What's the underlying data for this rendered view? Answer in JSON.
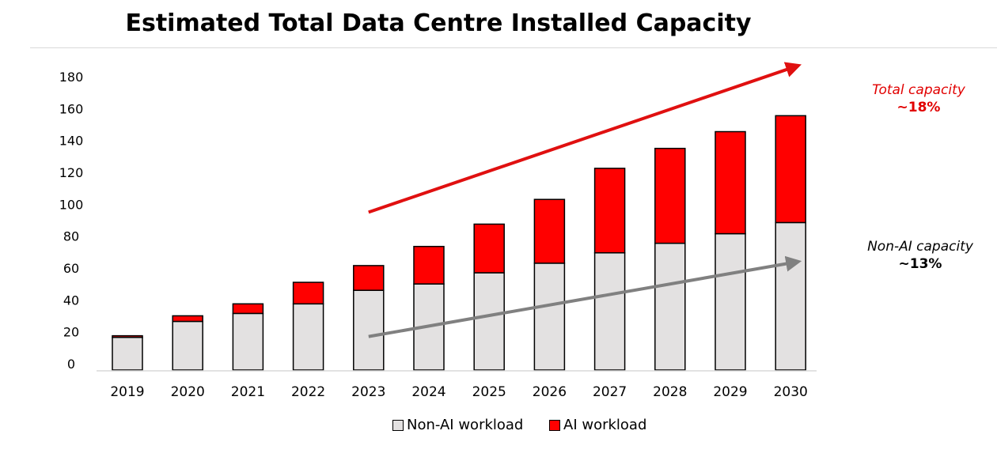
{
  "chart_data": {
    "type": "bar",
    "stacked": true,
    "title": "Estimated Total Data Centre Installed Capacity",
    "xlabel": "",
    "ylabel": "",
    "ylim": [
      0,
      180
    ],
    "yticks": [
      0,
      20,
      40,
      60,
      80,
      100,
      120,
      140,
      160,
      180
    ],
    "categories": [
      "2019",
      "2020",
      "2021",
      "2022",
      "2023",
      "2024",
      "2025",
      "2026",
      "2027",
      "2028",
      "2029",
      "2030"
    ],
    "series": [
      {
        "name": "Non-AI workload",
        "color": "#e3e1e1",
        "values": [
          20.5,
          30.5,
          35.5,
          41.5,
          50,
          54,
          61,
          67,
          73.5,
          79.5,
          85.5,
          92.5
        ]
      },
      {
        "name": "AI workload",
        "color": "#ff0000",
        "values": [
          1,
          3.5,
          6,
          13.5,
          15.5,
          23.5,
          30.5,
          40,
          53,
          59.5,
          64,
          67
        ]
      }
    ],
    "trend_arrows": [
      {
        "name": "total",
        "color": "#e01010",
        "from_year": "2023",
        "from_value": 99,
        "to_year": "2030",
        "to_value": 191
      },
      {
        "name": "non-ai",
        "color": "#808080",
        "from_year": "2023",
        "from_value": 21,
        "to_year": "2030",
        "to_value": 68
      }
    ],
    "annotations": [
      {
        "name": "total",
        "label": "Total capacity",
        "value": "~18%",
        "color": "#e10000"
      },
      {
        "name": "non-ai",
        "label": "Non-AI capacity",
        "value": "~13%",
        "color": "#000000"
      }
    ],
    "legend": [
      "Non-AI workload",
      "AI workload"
    ],
    "legend_position": "bottom-center"
  }
}
